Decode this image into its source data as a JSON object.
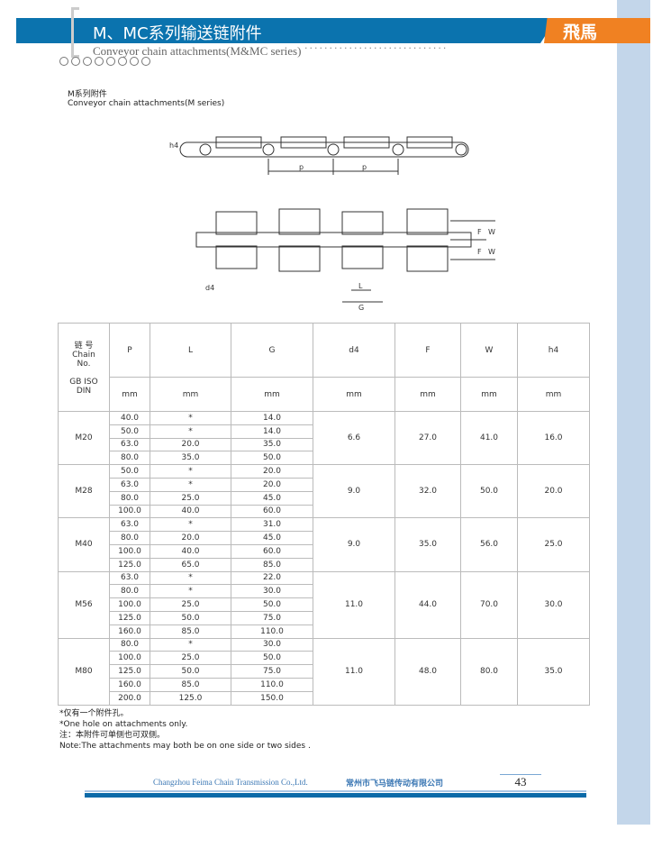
{
  "header": {
    "title": "M、MC系列输送链附件",
    "subtitle": "Conveyor chain attachments(M&MC series)",
    "logo": "飛馬",
    "dots": "·····························",
    "colors": {
      "blue": "#0b73ae",
      "orange": "#f08122",
      "sidebar": "#c3d6ea"
    }
  },
  "section": {
    "title_cn": "M系列附件",
    "title_en": "Conveyor chain attachments(M series)"
  },
  "diagram": {
    "labels": {
      "h4": "h4",
      "p": "p",
      "d4": "d4",
      "F": "F",
      "W": "W",
      "L": "L",
      "G": "G"
    }
  },
  "table": {
    "header": {
      "chain_cn": "链 号",
      "chain_en": "Chain",
      "chain_no": "No.",
      "std": "GB ISO",
      "std2": "DIN",
      "cols": [
        "P",
        "L",
        "G",
        "d4",
        "F",
        "W",
        "h4"
      ],
      "unit": "mm"
    },
    "groups": [
      {
        "chain": "M20",
        "d4": "6.6",
        "F": "27.0",
        "W": "41.0",
        "h4": "16.0",
        "rows": [
          [
            "40.0",
            "*",
            "14.0"
          ],
          [
            "50.0",
            "*",
            "14.0"
          ],
          [
            "63.0",
            "20.0",
            "35.0"
          ],
          [
            "80.0",
            "35.0",
            "50.0"
          ]
        ]
      },
      {
        "chain": "M28",
        "d4": "9.0",
        "F": "32.0",
        "W": "50.0",
        "h4": "20.0",
        "rows": [
          [
            "50.0",
            "*",
            "20.0"
          ],
          [
            "63.0",
            "*",
            "20.0"
          ],
          [
            "80.0",
            "25.0",
            "45.0"
          ],
          [
            "100.0",
            "40.0",
            "60.0"
          ]
        ]
      },
      {
        "chain": "M40",
        "d4": "9.0",
        "F": "35.0",
        "W": "56.0",
        "h4": "25.0",
        "rows": [
          [
            "63.0",
            "*",
            "31.0"
          ],
          [
            "80.0",
            "20.0",
            "45.0"
          ],
          [
            "100.0",
            "40.0",
            "60.0"
          ],
          [
            "125.0",
            "65.0",
            "85.0"
          ]
        ]
      },
      {
        "chain": "M56",
        "d4": "11.0",
        "F": "44.0",
        "W": "70.0",
        "h4": "30.0",
        "rows": [
          [
            "63.0",
            "*",
            "22.0"
          ],
          [
            "80.0",
            "*",
            "30.0"
          ],
          [
            "100.0",
            "25.0",
            "50.0"
          ],
          [
            "125.0",
            "50.0",
            "75.0"
          ],
          [
            "160.0",
            "85.0",
            "110.0"
          ]
        ]
      },
      {
        "chain": "M80",
        "d4": "11.0",
        "F": "48.0",
        "W": "80.0",
        "h4": "35.0",
        "rows": [
          [
            "80.0",
            "*",
            "30.0"
          ],
          [
            "100.0",
            "25.0",
            "50.0"
          ],
          [
            "125.0",
            "50.0",
            "75.0"
          ],
          [
            "160.0",
            "85.0",
            "110.0"
          ],
          [
            "200.0",
            "125.0",
            "150.0"
          ]
        ]
      }
    ]
  },
  "notes": [
    "*仅有一个附件孔。",
    "*One hole on attachments only.",
    "注：本附件可单侧也可双侧。",
    "Note:The attachments may both be on one side or two sides ."
  ],
  "footer": {
    "company_en": "Changzhou Feima Chain Transmission Co.,Ltd.",
    "company_cn": "常州市飞马链传动有限公司",
    "page": "43"
  }
}
